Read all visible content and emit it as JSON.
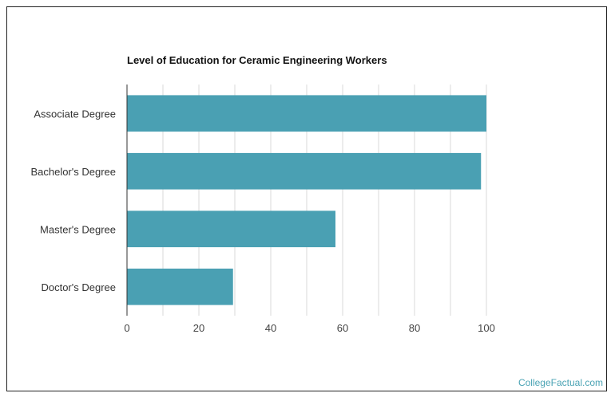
{
  "chart_data": {
    "type": "bar",
    "orientation": "horizontal",
    "title": "Level of Education for Ceramic Engineering Workers",
    "categories": [
      "Associate Degree",
      "Bachelor's Degree",
      "Master's Degree",
      "Doctor's Degree"
    ],
    "values": [
      100,
      98.5,
      58,
      29.5
    ],
    "xlabel": "",
    "ylabel": "",
    "xlim": [
      0,
      100
    ],
    "x_ticks": [
      "0",
      "20",
      "40",
      "60",
      "80",
      "100"
    ],
    "grid": true,
    "legend": "none",
    "bar_color": "#4aa0b3"
  },
  "watermark": "CollegeFactual.com"
}
